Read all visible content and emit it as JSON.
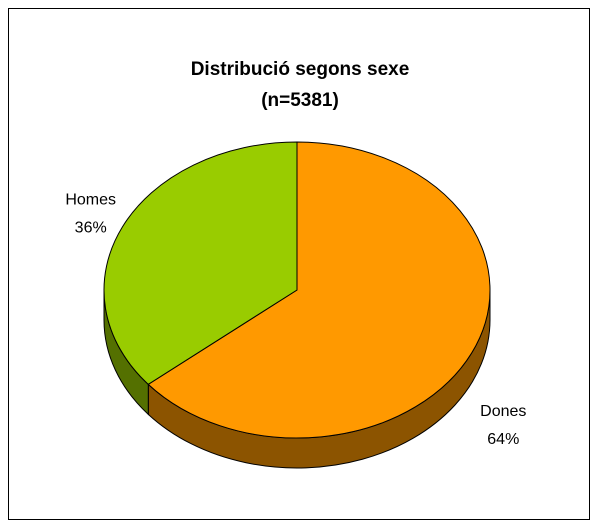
{
  "chart_data": {
    "type": "pie",
    "title": "Distribució segons sexe",
    "subtitle": "(n=5381)",
    "categories": [
      "Dones",
      "Homes"
    ],
    "values": [
      64,
      36
    ],
    "value_labels": [
      "64%",
      "36%"
    ],
    "colors": [
      "#ff9900",
      "#99cc00"
    ]
  }
}
